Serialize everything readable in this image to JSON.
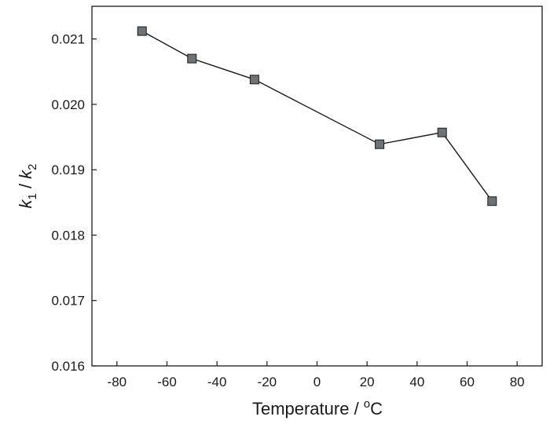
{
  "chart_data": {
    "type": "line",
    "title": "",
    "xlabel": "Temperature / ",
    "xlabel_sup": "o",
    "xlabel_unit": "C",
    "ylabel_k1": "k",
    "ylabel_sub1": "1",
    "ylabel_sep": " / ",
    "ylabel_k2": "k",
    "ylabel_sub2": "2",
    "xlim": [
      -90,
      90
    ],
    "ylim": [
      0.016,
      0.0215
    ],
    "xticks": [
      -80,
      -60,
      -40,
      -20,
      0,
      20,
      40,
      60,
      80
    ],
    "yticks": [
      "0.016",
      "0.017",
      "0.018",
      "0.019",
      "0.020",
      "0.021"
    ],
    "grid": false,
    "series": [
      {
        "x": [
          -70,
          -50,
          -25,
          25,
          50,
          70
        ],
        "y": [
          0.02112,
          0.0207,
          0.02038,
          0.01939,
          0.01957,
          0.01852
        ],
        "marker": "square",
        "color": "#6e7275"
      }
    ]
  }
}
